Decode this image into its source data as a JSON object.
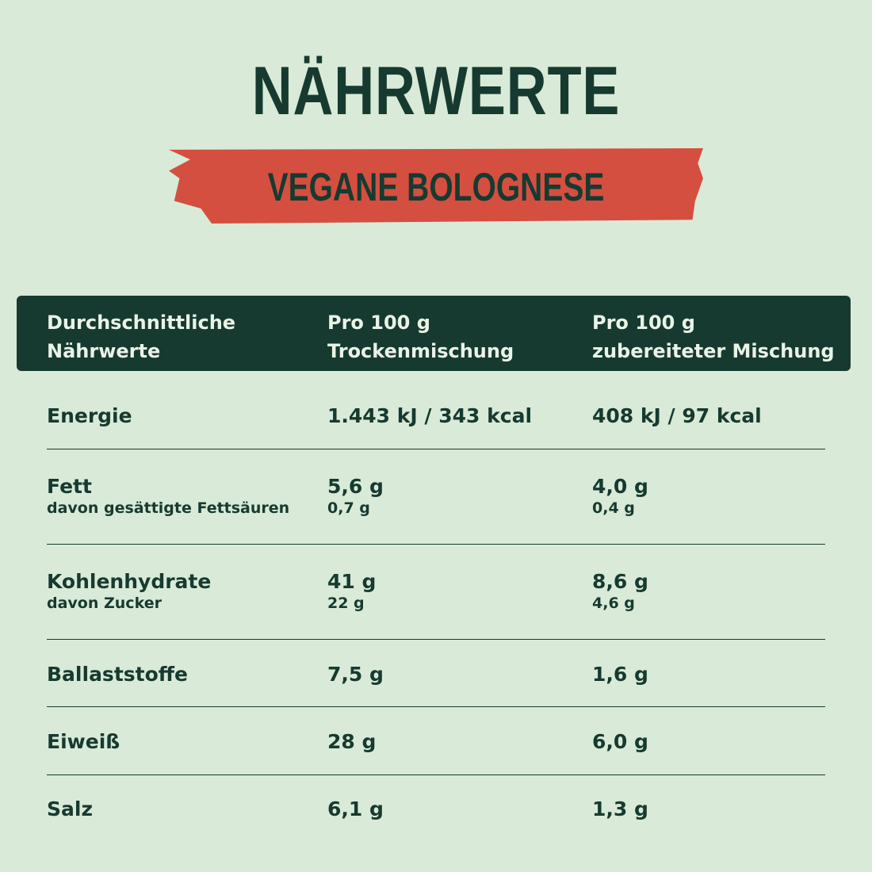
{
  "title": "NÄHRWERTE",
  "subtitle": "VEGANE BOLOGNESE",
  "colors": {
    "background": "#d9ead8",
    "dark_green": "#173a30",
    "red": "#d44f40"
  },
  "header": [
    "Durchschnittliche Nährwerte",
    "Pro 100 g Trockenmischung",
    "Pro 100 g zubereiteter Mischung"
  ],
  "header_lines": [
    [
      "Durchschnittliche",
      "Nährwerte"
    ],
    [
      "Pro 100 g",
      "Trockenmischung"
    ],
    [
      "Pro 100 g",
      "zubereiteter Mischung"
    ]
  ],
  "rows": [
    {
      "name": "Energie",
      "dry": "1.443 kJ / 343 kcal",
      "prepared": "408 kJ / 97 kcal"
    },
    {
      "name": "Fett",
      "sub": "davon gesättigte Fettsäuren",
      "dry": "5,6 g",
      "dry_sub": "0,7 g",
      "prepared": "4,0 g",
      "prepared_sub": "0,4 g"
    },
    {
      "name": "Kohlenhydrate",
      "sub": "davon Zucker",
      "dry": "41 g",
      "dry_sub": "22 g",
      "prepared": "8,6 g",
      "prepared_sub": "4,6 g"
    },
    {
      "name": "Ballaststoffe",
      "dry": "7,5 g",
      "prepared": "1,6 g"
    },
    {
      "name": "Eiweiß",
      "dry": "28 g",
      "prepared": "6,0 g"
    },
    {
      "name": "Salz",
      "dry": "6,1 g",
      "prepared": "1,3 g"
    }
  ]
}
